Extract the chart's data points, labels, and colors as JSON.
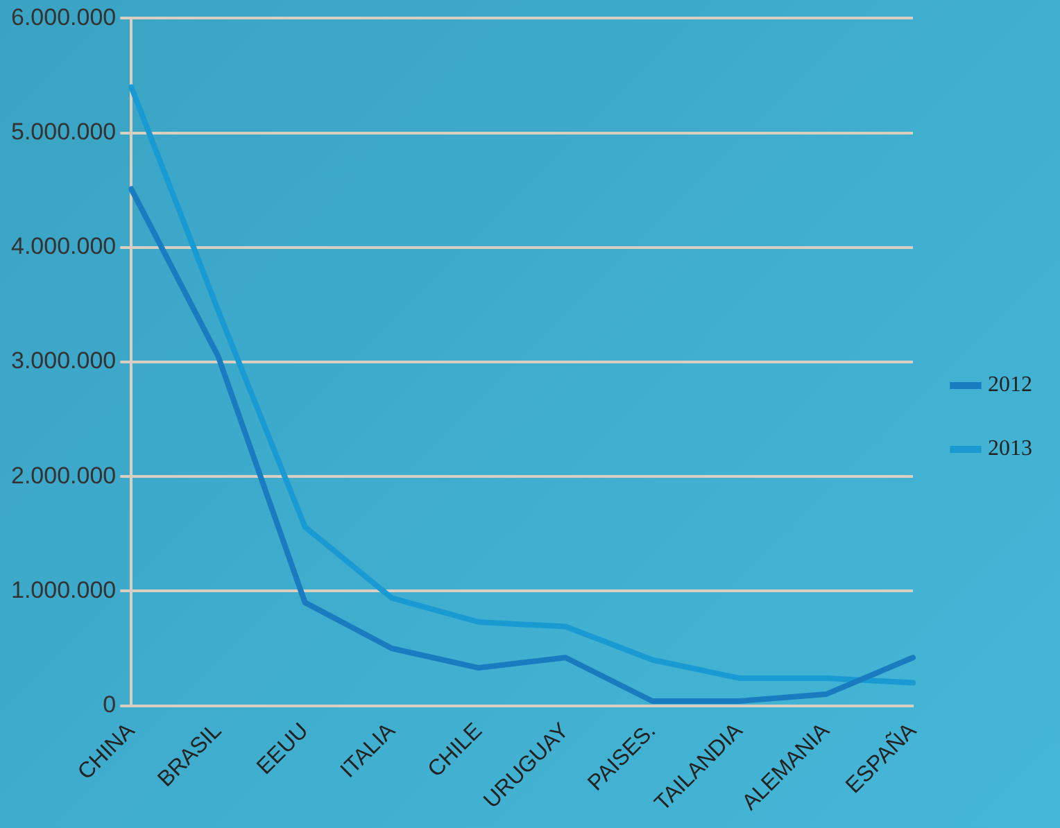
{
  "chart_data": {
    "type": "line",
    "categories": [
      "CHINA",
      "BRASIL",
      "EEUU",
      "ITALIA",
      "CHILE",
      "URUGUAY",
      "PAISES.",
      "TAILANDIA",
      "ALEMANIA",
      "ESPAÑA"
    ],
    "series": [
      {
        "name": "2012",
        "color": "#1a7cc0",
        "values": [
          4510000,
          3050000,
          900000,
          500000,
          330000,
          420000,
          40000,
          40000,
          100000,
          420000
        ]
      },
      {
        "name": "2013",
        "color": "#1a9ad2",
        "values": [
          5400000,
          3450000,
          1560000,
          940000,
          730000,
          690000,
          400000,
          240000,
          240000,
          200000
        ]
      }
    ],
    "ylim": [
      0,
      6000000
    ],
    "yticks": [
      {
        "value": 0,
        "label": "0"
      },
      {
        "value": 1000000,
        "label": "1.000.000"
      },
      {
        "value": 2000000,
        "label": "2.000.000"
      },
      {
        "value": 3000000,
        "label": "3.000.000"
      },
      {
        "value": 4000000,
        "label": "4.000.000"
      },
      {
        "value": 5000000,
        "label": "5.000.000"
      },
      {
        "value": 6000000,
        "label": "6.000.000"
      }
    ],
    "grid": "y",
    "legend": "right",
    "marker": "none",
    "line_style": "solid"
  }
}
